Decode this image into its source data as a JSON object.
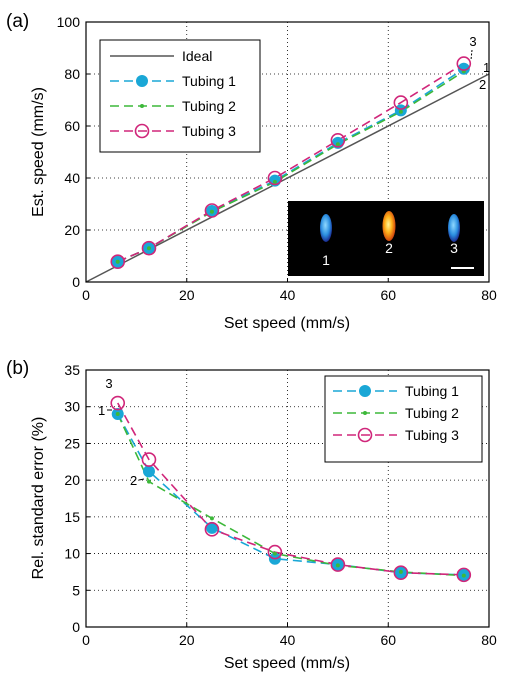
{
  "colors": {
    "ideal": "#555555",
    "tubing1": "#1aa7d6",
    "tubing2": "#3db83a",
    "tubing3": "#d0267a"
  },
  "chart_data": [
    {
      "panel": "(a)",
      "type": "line",
      "xlabel": "Set speed (mm/s)",
      "ylabel": "Est. speed (mm/s)",
      "xlim": [
        0,
        80
      ],
      "ylim": [
        0,
        100
      ],
      "xticks": [
        0,
        20,
        40,
        60,
        80
      ],
      "yticks": [
        0,
        20,
        40,
        60,
        80,
        100
      ],
      "grid": true,
      "legend_position": "top-left",
      "x": [
        6.3,
        12.5,
        25,
        37.5,
        50,
        62.5,
        75
      ],
      "series": [
        {
          "name": "Ideal",
          "x": [
            0,
            80
          ],
          "values": [
            0,
            80
          ],
          "style": "solid"
        },
        {
          "name": "Tubing 1",
          "values": [
            7.8,
            13,
            27.3,
            39,
            53.5,
            66,
            82
          ],
          "style": "dashed",
          "marker": "filled-circle"
        },
        {
          "name": "Tubing 2",
          "values": [
            7.8,
            13,
            27,
            38.5,
            53,
            65.5,
            81
          ],
          "style": "dashed",
          "marker": "dot"
        },
        {
          "name": "Tubing 3",
          "values": [
            7.8,
            13,
            27.5,
            40,
            54.5,
            69,
            84
          ],
          "style": "dashed",
          "marker": "open-circle"
        }
      ],
      "end_labels": [
        "3",
        "1",
        "2"
      ],
      "inset": {
        "labels": [
          "1",
          "2",
          "3"
        ]
      }
    },
    {
      "panel": "(b)",
      "type": "line",
      "xlabel": "Set speed (mm/s)",
      "ylabel": "Rel. standard error (%)",
      "xlim": [
        0,
        80
      ],
      "ylim": [
        0,
        35
      ],
      "xticks": [
        0,
        20,
        40,
        60,
        80
      ],
      "yticks": [
        0,
        5,
        10,
        15,
        20,
        25,
        30,
        35
      ],
      "grid": true,
      "legend_position": "top-right",
      "x": [
        6.3,
        12.5,
        25,
        37.5,
        50,
        62.5,
        75
      ],
      "series": [
        {
          "name": "Tubing 1",
          "values": [
            29,
            21.2,
            13.5,
            9.3,
            8.5,
            7.4,
            7.1
          ],
          "style": "dashed",
          "marker": "filled-circle"
        },
        {
          "name": "Tubing 2",
          "values": [
            29,
            19.8,
            14.8,
            10,
            8.4,
            7.5,
            7
          ],
          "style": "dashed",
          "marker": "dot"
        },
        {
          "name": "Tubing 3",
          "values": [
            30.5,
            22.8,
            13.3,
            10.2,
            8.5,
            7.4,
            7.1
          ],
          "style": "dashed",
          "marker": "open-circle"
        }
      ],
      "point_labels": [
        "3",
        "1",
        "2"
      ]
    }
  ]
}
